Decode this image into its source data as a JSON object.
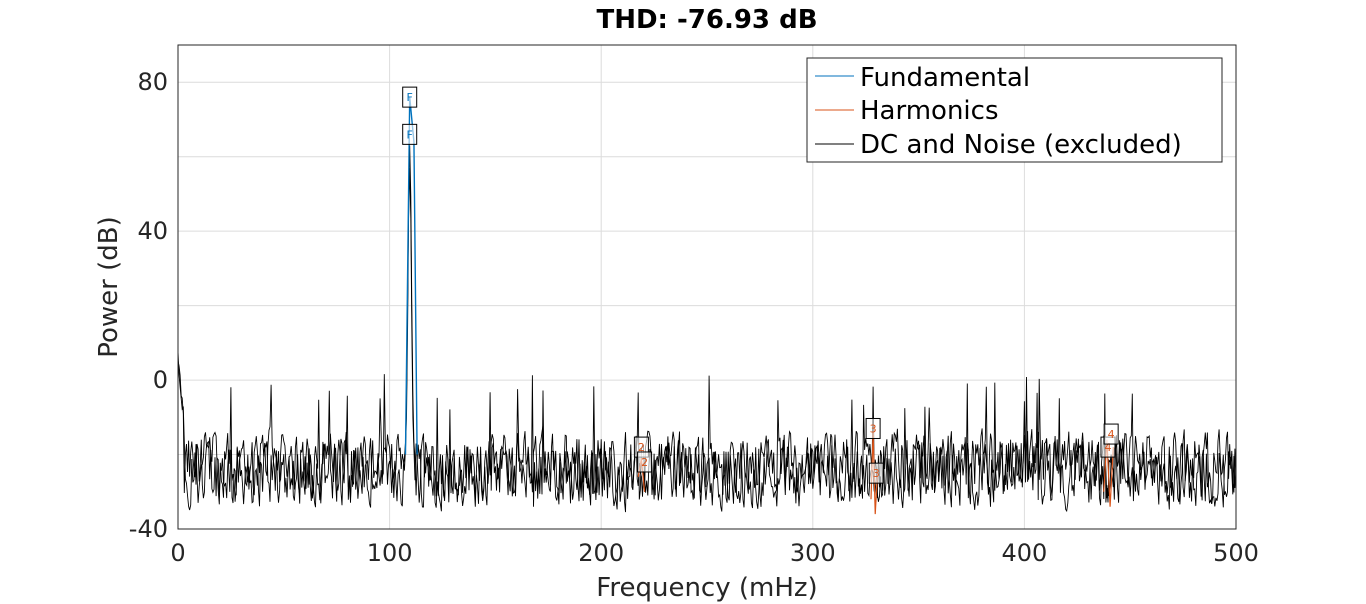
{
  "chart_data": {
    "type": "line",
    "title": "THD: -76.93 dB",
    "xlabel": "Frequency (mHz)",
    "ylabel": "Power (dB)",
    "xlim": [
      0,
      500
    ],
    "ylim": [
      -40,
      90
    ],
    "xticks": [
      "0",
      "100",
      "200",
      "300",
      "400",
      "500"
    ],
    "yticks": [
      "-40",
      "0",
      "40",
      "80"
    ],
    "grid": true,
    "legend_position": "top-right",
    "series": [
      {
        "name": "Fundamental",
        "color": "#0072BD",
        "x": [
          107.5,
          109.5,
          111.5,
          113.0
        ],
        "y": [
          -20,
          76,
          64,
          -20
        ]
      },
      {
        "name": "Harmonics",
        "color": "#D95319",
        "groups": [
          {
            "x": [
              217.5,
              219,
              220.5
            ],
            "y": [
              -26,
              -21,
              -30
            ]
          },
          {
            "x": [
              327.5,
              328.5,
              329.5,
              330.5
            ],
            "y": [
              -32,
              -14,
              -36,
              -26
            ]
          },
          {
            "x": [
              437.5,
              439,
              440.5,
              442
            ],
            "y": [
              -30,
              -16,
              -34,
              -18
            ]
          }
        ]
      },
      {
        "name": "DC and Noise (excluded)",
        "color": "#000000"
      }
    ],
    "markers": [
      {
        "label": "F",
        "x": 109.5,
        "y": 76,
        "color": "#0072BD"
      },
      {
        "label": "F",
        "x": 109.5,
        "y": 66,
        "color": "#0072BD"
      },
      {
        "label": "2",
        "x": 219,
        "y": -18,
        "color": "#D95319"
      },
      {
        "label": "2",
        "x": 220.5,
        "y": -22,
        "color": "#D95319"
      },
      {
        "label": "3",
        "x": 328.5,
        "y": -13,
        "color": "#D95319"
      },
      {
        "label": "3",
        "x": 330,
        "y": -25,
        "color": "#D95319"
      },
      {
        "label": "4",
        "x": 439.5,
        "y": -18,
        "color": "#D95319"
      },
      {
        "label": "4",
        "x": 441,
        "y": -14.5,
        "color": "#D95319"
      }
    ]
  }
}
